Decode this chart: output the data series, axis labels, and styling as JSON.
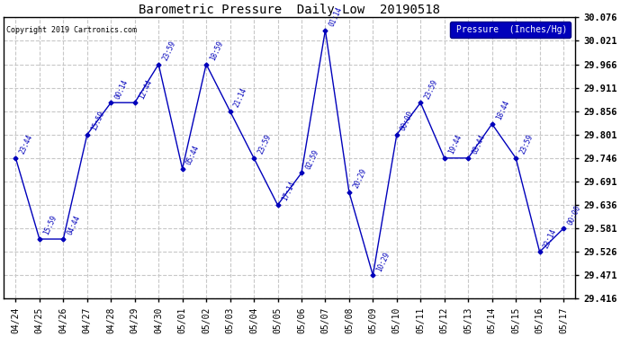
{
  "title": "Barometric Pressure  Daily Low  20190518",
  "copyright": "Copyright 2019 Cartronics.com",
  "legend_label": "Pressure  (Inches/Hg)",
  "background_color": "#ffffff",
  "plot_bg_color": "#ffffff",
  "grid_color": "#c8c8c8",
  "line_color": "#0000bb",
  "text_color": "#0000bb",
  "dates": [
    "04/24",
    "04/25",
    "04/26",
    "04/27",
    "04/28",
    "04/29",
    "04/30",
    "05/01",
    "05/02",
    "05/03",
    "05/04",
    "05/05",
    "05/06",
    "05/07",
    "05/08",
    "05/09",
    "05/10",
    "05/11",
    "05/12",
    "05/13",
    "05/14",
    "05/15",
    "05/16",
    "05/17"
  ],
  "values": [
    29.746,
    29.556,
    29.556,
    29.801,
    29.876,
    29.876,
    29.966,
    29.721,
    29.966,
    29.856,
    29.746,
    29.636,
    29.711,
    30.046,
    29.666,
    29.471,
    29.801,
    29.876,
    29.746,
    29.746,
    29.826,
    29.746,
    29.526,
    29.581
  ],
  "annotations": [
    "23:44",
    "15:59",
    "04:44",
    "15:59",
    "00:14",
    "12:44",
    "23:59",
    "05:44",
    "18:59",
    "21:14",
    "23:59",
    "17:14",
    "02:59",
    "01:14",
    "20:29",
    "10:29",
    "00:00",
    "23:59",
    "19:44",
    "03:44",
    "18:44",
    "23:59",
    "23:14",
    "00:00"
  ],
  "ylim_min": 29.416,
  "ylim_max": 30.076,
  "yticks": [
    29.416,
    29.471,
    29.526,
    29.581,
    29.636,
    29.691,
    29.746,
    29.801,
    29.856,
    29.911,
    29.966,
    30.021,
    30.076
  ]
}
